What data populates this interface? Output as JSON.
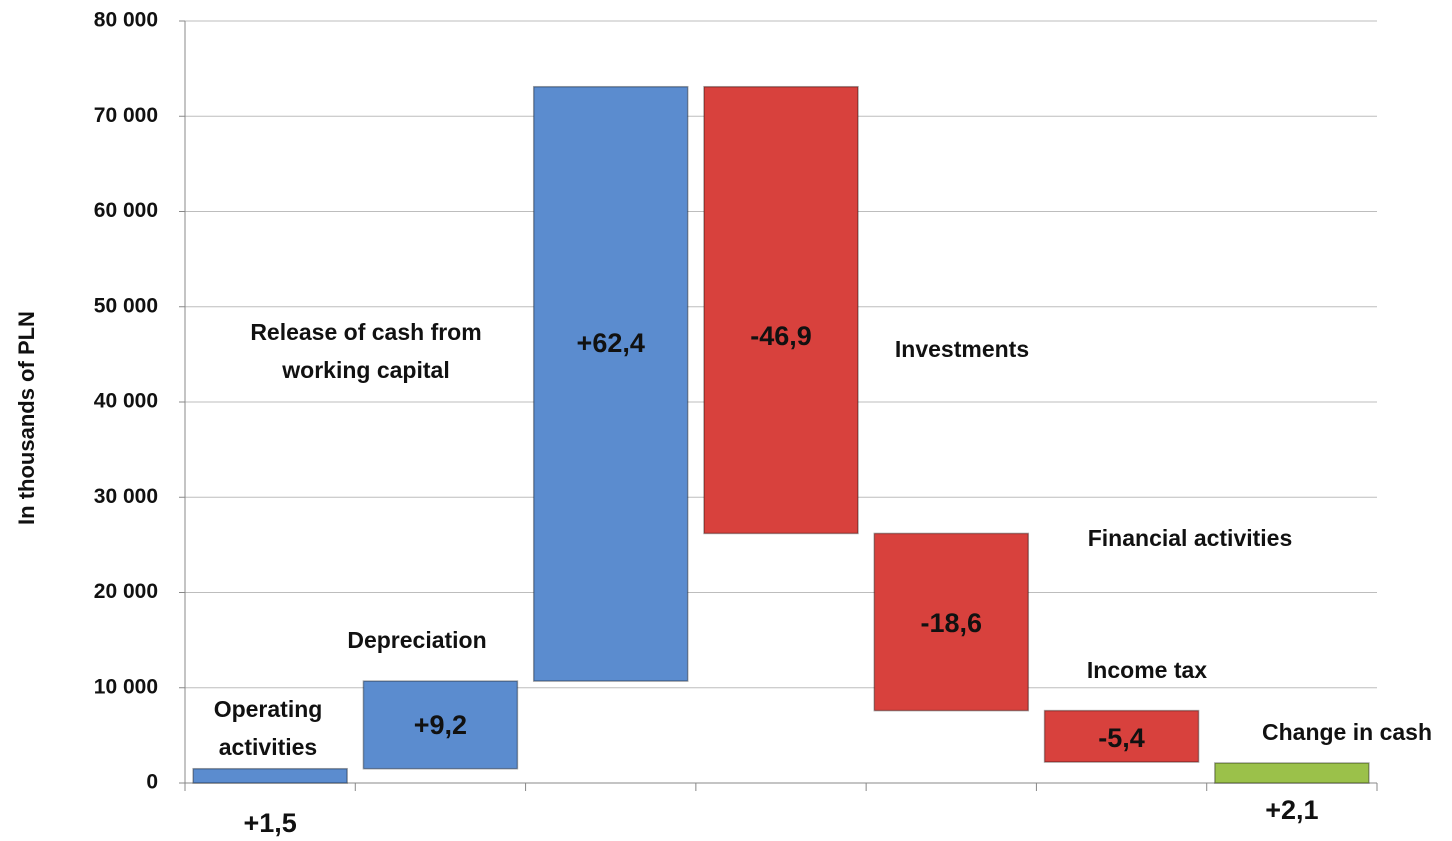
{
  "chart_data": {
    "type": "waterfall",
    "y_label": "In thousands of PLN",
    "categories": [
      "Operating activities",
      "Depreciation",
      "Release of cash from working capital",
      "Investments",
      "Financial activities",
      "Income tax",
      "Change in cash"
    ],
    "values": [
      1500,
      9200,
      62400,
      -46900,
      -18600,
      -5400,
      2100
    ],
    "value_labels": [
      "+1,5",
      "+9,2",
      "+62,4",
      "-46,9",
      "-18,6",
      "-5,4",
      "+2,1"
    ],
    "colors": [
      "#5b8ccf",
      "#5b8ccf",
      "#5b8ccf",
      "#d8413d",
      "#d8413d",
      "#d8413d",
      "#9bc14a"
    ],
    "ylim": [
      0,
      80000
    ],
    "yticks": [
      0,
      {
        "value": 10000,
        "label": "10 000"
      },
      {
        "value": 20000,
        "label": "20 000"
      },
      {
        "value": 30000,
        "label": "30 000"
      },
      {
        "value": 40000,
        "label": "40 000"
      },
      {
        "value": 50000,
        "label": "50 000"
      },
      {
        "value": 60000,
        "label": "60 000"
      },
      {
        "value": 70000,
        "label": "70 000"
      },
      {
        "value": 80000,
        "label": "80 000"
      }
    ],
    "grid": true
  }
}
